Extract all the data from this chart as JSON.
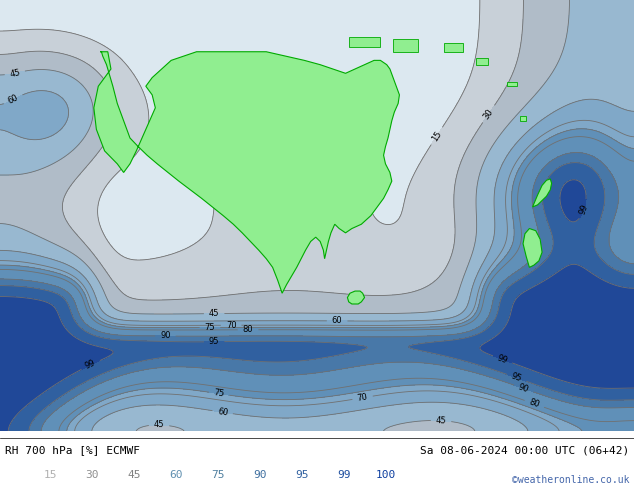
{
  "title_left": "RH 700 hPa [%] ECMWF",
  "title_right": "Sa 08-06-2024 00:00 UTC (06+42)",
  "credit": "©weatheronline.co.uk",
  "colorbar_levels": [
    15,
    30,
    45,
    60,
    75,
    90,
    95,
    99,
    100
  ],
  "colorbar_colors": [
    "#e0e0e0",
    "#c8c8c8",
    "#b4b4b4",
    "#aac8e0",
    "#80b4d2",
    "#60a0c8",
    "#4090c0",
    "#2070b0",
    "#0050a0"
  ],
  "background_color": "#ffffff",
  "land_color": "#90ee90",
  "border_color": "#00aa00",
  "contour_color": "#808080",
  "label_color": "#000000",
  "figsize": [
    6.34,
    4.9
  ],
  "dpi": 100
}
